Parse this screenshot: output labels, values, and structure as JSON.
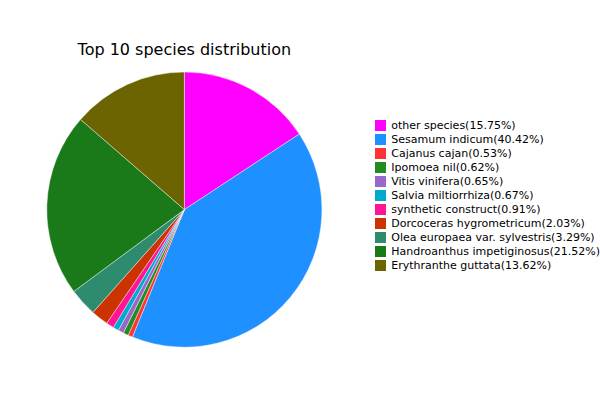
{
  "chart_data": {
    "type": "pie",
    "title": "Top 10 species distribution",
    "categories": [
      "other species(15.75%)",
      "Sesamum indicum(40.42%)",
      "Cajanus cajan(0.53%)",
      "Ipomoea nil(0.62%)",
      "Vitis vinifera(0.65%)",
      "Salvia miltiorrhiza(0.67%)",
      "synthetic construct(0.91%)",
      "Dorcoceras hygrometricum(2.03%)",
      "Olea europaea var. sylvestris(3.29%)",
      "Handroanthus impetiginosus(21.52%)",
      "Erythranthe guttata(13.62%)"
    ],
    "values": [
      15.75,
      40.42,
      0.53,
      0.62,
      0.65,
      0.67,
      0.91,
      2.03,
      3.29,
      21.52,
      13.62
    ],
    "colors": [
      "#ff00ff",
      "#1e90ff",
      "#ff3333",
      "#228B22",
      "#9966cc",
      "#00aacc",
      "#ff1493",
      "#cc3300",
      "#2e8b6e",
      "#1a7a1a",
      "#6b6400"
    ],
    "legend": "right"
  }
}
